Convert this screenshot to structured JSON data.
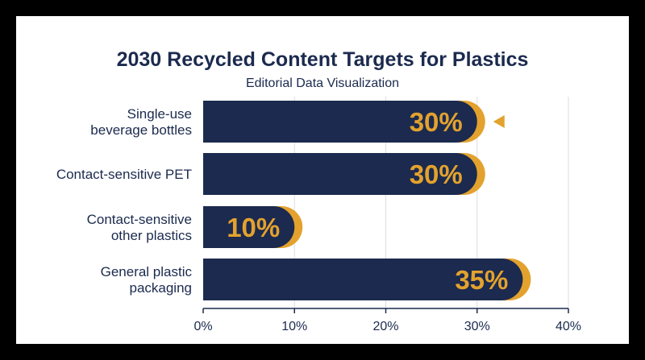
{
  "chart_data": {
    "type": "bar",
    "orientation": "horizontal",
    "title": "2030 Recycled Content Targets for Plastics",
    "subtitle": "Editorial Data Visualization",
    "categories": [
      [
        "Single-use",
        "beverage bottles"
      ],
      [
        "Contact-sensitive PET"
      ],
      [
        "Contact-sensitive",
        "other plastics"
      ],
      [
        "General plastic",
        "packaging"
      ]
    ],
    "values": [
      30,
      30,
      10,
      35
    ],
    "value_labels": [
      "30%",
      "30%",
      "10%",
      "35%"
    ],
    "highlight_marker_index": 0,
    "xlim": [
      0,
      40
    ],
    "xticks": [
      0,
      10,
      20,
      30,
      40
    ],
    "xtick_labels": [
      "0%",
      "10%",
      "20%",
      "30%",
      "40%"
    ],
    "grid": "vertical",
    "colors": {
      "bar": "#1b2a4e",
      "accent": "#e3a22e",
      "text": "#1b2a4e",
      "grid": "#dddddd",
      "axis": "#1b2a4e"
    }
  }
}
